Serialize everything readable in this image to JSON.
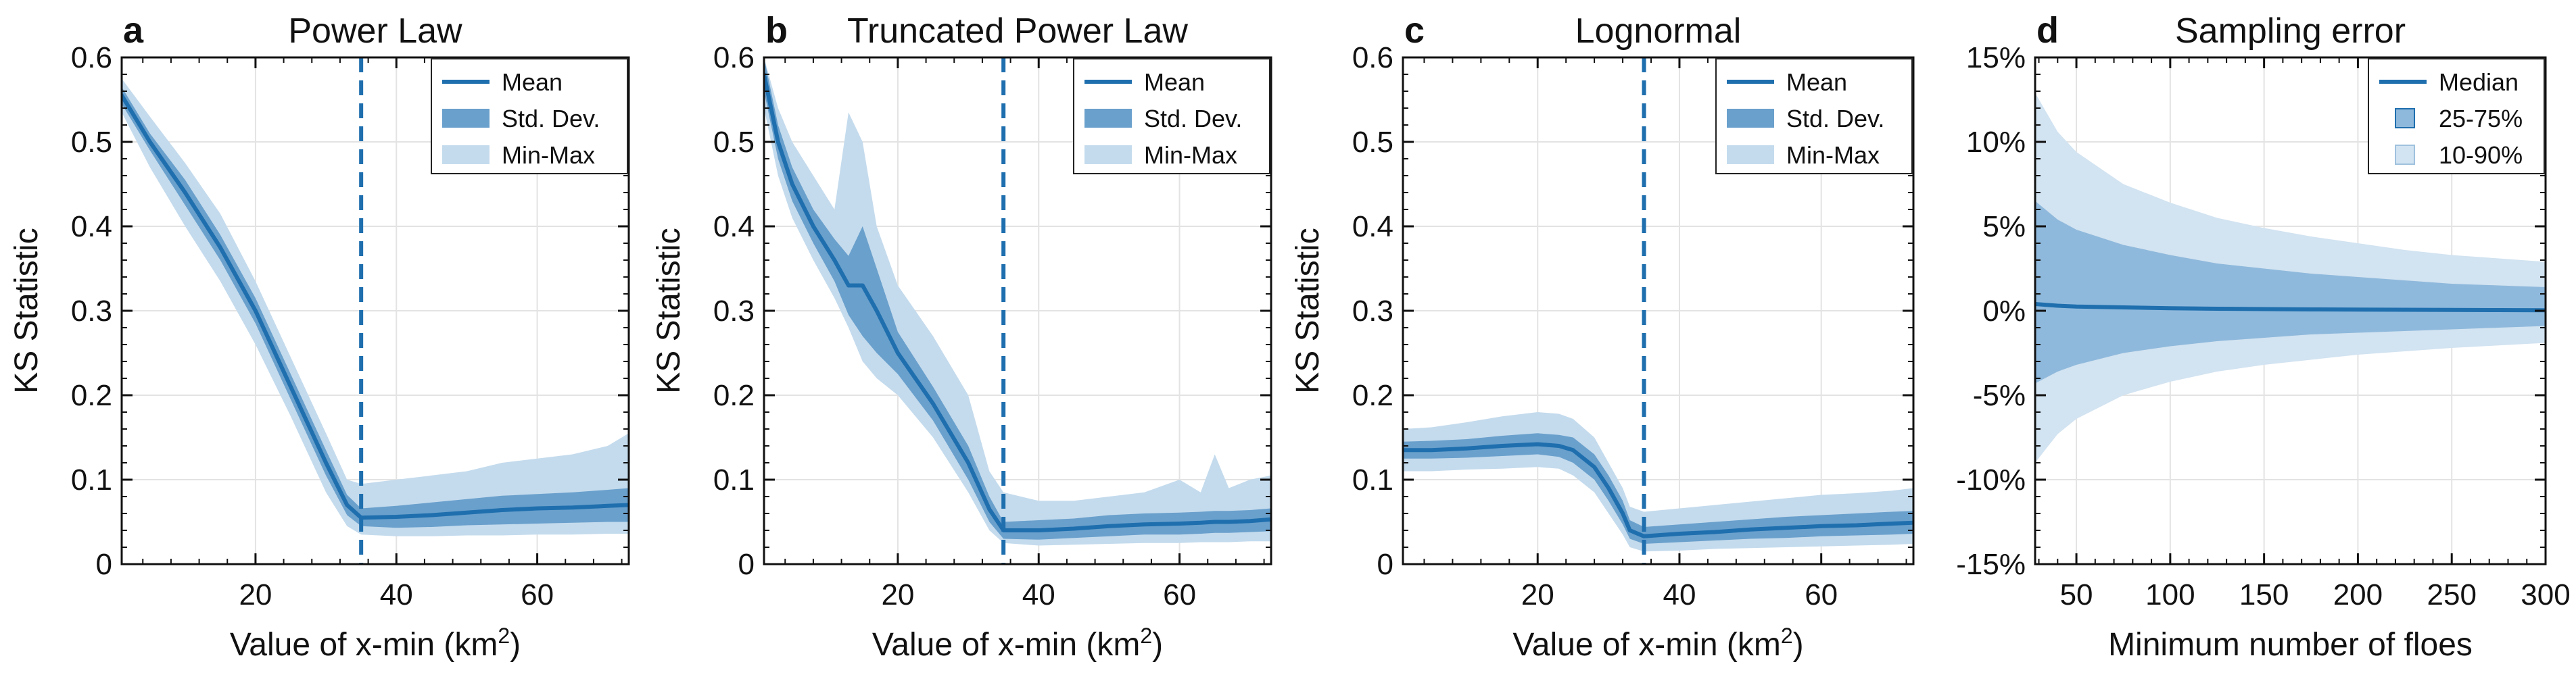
{
  "colors": {
    "line": "#1f6fae",
    "std": "#6aa0cc",
    "minmax": "#c4dbed",
    "band_dark": "#8fb9dc",
    "band_light": "#d2e3f1",
    "vline": "#1f6fae"
  },
  "chart_data": [
    {
      "type": "line",
      "panel": "a",
      "title": "Power Law",
      "xlabel": "Value of x-min (km",
      "xlabel_sup": "2",
      "xlabel_end": ")",
      "ylabel": "KS Statistic",
      "xlim": [
        1,
        73
      ],
      "ylim": [
        0,
        0.6
      ],
      "xticks": [
        20,
        40,
        60
      ],
      "yticks": [
        0,
        0.1,
        0.2,
        0.3,
        0.4,
        0.5,
        0.6
      ],
      "ytick_labels": [
        "0",
        "0.1",
        "0.2",
        "0.3",
        "0.4",
        "0.5",
        "0.6"
      ],
      "vline": 35,
      "grid": true,
      "legend": {
        "placement": "top-right",
        "entries": [
          "Mean",
          "Std. Dev.",
          "Min-Max"
        ]
      },
      "x": [
        1,
        5,
        10,
        15,
        20,
        25,
        30,
        33,
        35,
        40,
        45,
        50,
        55,
        60,
        65,
        70,
        73
      ],
      "mean": [
        0.555,
        0.5,
        0.44,
        0.375,
        0.3,
        0.21,
        0.12,
        0.07,
        0.055,
        0.056,
        0.058,
        0.061,
        0.064,
        0.066,
        0.067,
        0.069,
        0.07
      ],
      "std_lo": [
        0.545,
        0.49,
        0.425,
        0.36,
        0.285,
        0.195,
        0.105,
        0.058,
        0.045,
        0.043,
        0.044,
        0.046,
        0.047,
        0.048,
        0.049,
        0.05,
        0.05
      ],
      "std_hi": [
        0.565,
        0.51,
        0.455,
        0.39,
        0.315,
        0.225,
        0.135,
        0.082,
        0.066,
        0.069,
        0.073,
        0.077,
        0.081,
        0.083,
        0.085,
        0.088,
        0.09
      ],
      "min": [
        0.535,
        0.47,
        0.4,
        0.335,
        0.26,
        0.175,
        0.085,
        0.045,
        0.035,
        0.033,
        0.033,
        0.034,
        0.034,
        0.035,
        0.035,
        0.036,
        0.036
      ],
      "max": [
        0.575,
        0.53,
        0.475,
        0.415,
        0.335,
        0.245,
        0.155,
        0.1,
        0.095,
        0.1,
        0.105,
        0.11,
        0.12,
        0.125,
        0.13,
        0.14,
        0.155
      ]
    },
    {
      "type": "line",
      "panel": "b",
      "title": "Truncated Power Law",
      "xlabel": "Value of x-min (km",
      "xlabel_sup": "2",
      "xlabel_end": ")",
      "ylabel": "KS Statistic",
      "xlim": [
        1,
        73
      ],
      "ylim": [
        0,
        0.6
      ],
      "xticks": [
        20,
        40,
        60
      ],
      "yticks": [
        0,
        0.1,
        0.2,
        0.3,
        0.4,
        0.5,
        0.6
      ],
      "ytick_labels": [
        "0",
        "0.1",
        "0.2",
        "0.3",
        "0.4",
        "0.5",
        "0.6"
      ],
      "vline": 35,
      "grid": true,
      "legend": {
        "placement": "top-right",
        "entries": [
          "Mean",
          "Std. Dev.",
          "Min-Max"
        ]
      },
      "x": [
        1,
        3,
        5,
        8,
        11,
        13,
        15,
        17,
        20,
        25,
        30,
        33,
        35,
        40,
        45,
        50,
        55,
        60,
        63,
        65,
        67,
        70,
        73
      ],
      "mean": [
        0.58,
        0.5,
        0.45,
        0.4,
        0.36,
        0.33,
        0.33,
        0.3,
        0.25,
        0.19,
        0.12,
        0.065,
        0.04,
        0.04,
        0.042,
        0.045,
        0.047,
        0.048,
        0.049,
        0.05,
        0.05,
        0.051,
        0.053
      ],
      "std_lo": [
        0.56,
        0.48,
        0.43,
        0.38,
        0.335,
        0.295,
        0.27,
        0.25,
        0.225,
        0.17,
        0.1,
        0.05,
        0.03,
        0.029,
        0.031,
        0.033,
        0.035,
        0.035,
        0.036,
        0.037,
        0.037,
        0.038,
        0.039
      ],
      "std_hi": [
        0.6,
        0.52,
        0.47,
        0.42,
        0.385,
        0.365,
        0.4,
        0.35,
        0.275,
        0.21,
        0.14,
        0.08,
        0.05,
        0.052,
        0.054,
        0.058,
        0.06,
        0.061,
        0.062,
        0.063,
        0.063,
        0.064,
        0.066
      ],
      "min": [
        0.54,
        0.46,
        0.41,
        0.36,
        0.315,
        0.28,
        0.24,
        0.22,
        0.2,
        0.15,
        0.085,
        0.04,
        0.025,
        0.022,
        0.023,
        0.024,
        0.025,
        0.025,
        0.026,
        0.026,
        0.026,
        0.027,
        0.027
      ],
      "max": [
        0.6,
        0.54,
        0.5,
        0.46,
        0.42,
        0.535,
        0.5,
        0.4,
        0.33,
        0.27,
        0.2,
        0.11,
        0.085,
        0.075,
        0.075,
        0.08,
        0.085,
        0.1,
        0.085,
        0.13,
        0.09,
        0.1,
        0.105
      ]
    },
    {
      "type": "line",
      "panel": "c",
      "title": "Lognormal",
      "xlabel": "Value of x-min (km",
      "xlabel_sup": "2",
      "xlabel_end": ")",
      "ylabel": "KS Statistic",
      "xlim": [
        1,
        73
      ],
      "ylim": [
        0,
        0.6
      ],
      "xticks": [
        20,
        40,
        60
      ],
      "yticks": [
        0,
        0.1,
        0.2,
        0.3,
        0.4,
        0.5,
        0.6
      ],
      "ytick_labels": [
        "0",
        "0.1",
        "0.2",
        "0.3",
        "0.4",
        "0.5",
        "0.6"
      ],
      "vline": 35,
      "grid": true,
      "legend": {
        "placement": "top-right",
        "entries": [
          "Mean",
          "Std. Dev.",
          "Min-Max"
        ]
      },
      "x": [
        1,
        5,
        10,
        15,
        20,
        23,
        25,
        28,
        30,
        32,
        33,
        35,
        40,
        45,
        50,
        55,
        60,
        65,
        70,
        73
      ],
      "mean": [
        0.135,
        0.135,
        0.137,
        0.14,
        0.142,
        0.14,
        0.135,
        0.115,
        0.09,
        0.06,
        0.04,
        0.033,
        0.036,
        0.038,
        0.041,
        0.043,
        0.045,
        0.046,
        0.048,
        0.049
      ],
      "std_lo": [
        0.125,
        0.125,
        0.126,
        0.128,
        0.13,
        0.127,
        0.12,
        0.1,
        0.075,
        0.047,
        0.03,
        0.024,
        0.026,
        0.028,
        0.03,
        0.031,
        0.033,
        0.034,
        0.035,
        0.036
      ],
      "std_hi": [
        0.145,
        0.146,
        0.148,
        0.152,
        0.155,
        0.153,
        0.15,
        0.13,
        0.105,
        0.075,
        0.052,
        0.044,
        0.047,
        0.05,
        0.053,
        0.056,
        0.058,
        0.06,
        0.062,
        0.063
      ],
      "min": [
        0.11,
        0.11,
        0.112,
        0.113,
        0.115,
        0.113,
        0.105,
        0.085,
        0.06,
        0.035,
        0.02,
        0.015,
        0.016,
        0.018,
        0.019,
        0.02,
        0.021,
        0.022,
        0.023,
        0.024
      ],
      "max": [
        0.16,
        0.162,
        0.168,
        0.175,
        0.18,
        0.178,
        0.172,
        0.15,
        0.12,
        0.09,
        0.068,
        0.062,
        0.066,
        0.07,
        0.074,
        0.078,
        0.082,
        0.084,
        0.087,
        0.09
      ]
    },
    {
      "type": "area",
      "panel": "d",
      "title": "Sampling error",
      "xlabel": "Minimum number of floes",
      "ylabel": "",
      "xlim": [
        28,
        300
      ],
      "ylim": [
        -15,
        15
      ],
      "xticks": [
        50,
        100,
        150,
        200,
        250,
        300
      ],
      "yticks": [
        -15,
        -10,
        -5,
        0,
        5,
        10,
        15
      ],
      "ytick_labels": [
        "-15%",
        "-10%",
        "-5%",
        "0%",
        "5%",
        "10%",
        "15%"
      ],
      "grid": true,
      "legend": {
        "placement": "top-right",
        "entries": [
          "Median",
          "25-75%",
          "10-90%"
        ]
      },
      "x": [
        28,
        40,
        50,
        75,
        100,
        125,
        150,
        175,
        200,
        225,
        250,
        275,
        300
      ],
      "median": [
        0.4,
        0.3,
        0.25,
        0.2,
        0.15,
        0.12,
        0.1,
        0.08,
        0.07,
        0.06,
        0.05,
        0.04,
        0.03
      ],
      "p25": [
        -4.3,
        -3.6,
        -3.2,
        -2.5,
        -2.1,
        -1.8,
        -1.6,
        -1.4,
        -1.3,
        -1.2,
        -1.1,
        -1.0,
        -0.9
      ],
      "p75": [
        6.5,
        5.4,
        4.8,
        3.9,
        3.3,
        2.8,
        2.5,
        2.2,
        2.0,
        1.8,
        1.6,
        1.5,
        1.4
      ],
      "p10": [
        -9.0,
        -7.3,
        -6.4,
        -5.0,
        -4.2,
        -3.6,
        -3.2,
        -2.9,
        -2.6,
        -2.4,
        -2.2,
        -2.05,
        -1.9
      ],
      "p90": [
        12.9,
        10.6,
        9.4,
        7.5,
        6.4,
        5.5,
        4.9,
        4.4,
        4.0,
        3.6,
        3.3,
        3.1,
        2.9
      ]
    }
  ]
}
